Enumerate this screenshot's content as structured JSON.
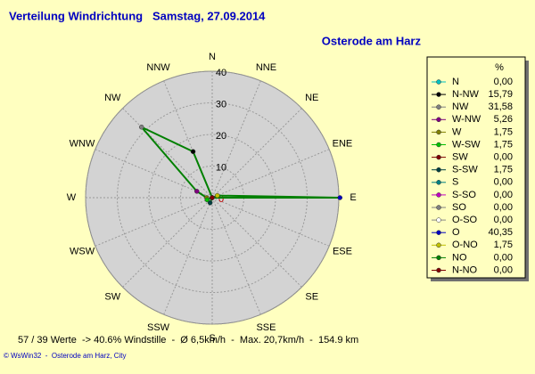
{
  "chart_data": {
    "type": "polar",
    "title": "Verteilung Windrichtung   Samstag, 27.09.2014",
    "subtitle": "Osterode am Harz",
    "categories": [
      "N",
      "NNE",
      "NE",
      "ENE",
      "E",
      "ESE",
      "SE",
      "SSE",
      "S",
      "SSW",
      "SW",
      "WSW",
      "W",
      "WNW",
      "NW",
      "NNW"
    ],
    "legend_title": "%",
    "legend_labels": [
      "N",
      "N-NW",
      "NW",
      "W-NW",
      "W",
      "W-SW",
      "SW",
      "S-SW",
      "S",
      "S-SO",
      "SO",
      "O-SO",
      "O",
      "O-NO",
      "NO",
      "N-NO"
    ],
    "values": [
      0,
      15.79,
      31.58,
      5.26,
      1.75,
      1.75,
      0,
      1.75,
      0,
      0,
      0,
      0,
      40.35,
      1.75,
      0,
      0
    ],
    "value_labels": [
      "0,00",
      "15,79",
      "31,58",
      "5,26",
      "1,75",
      "1,75",
      "0,00",
      "1,75",
      "0,00",
      "0,00",
      "0,00",
      "0,00",
      "40,35",
      "1,75",
      "0,00",
      "0,00"
    ],
    "colors": [
      "#00c0c0",
      "#000000",
      "#808080",
      "#800080",
      "#808000",
      "#00c000",
      "#800000",
      "#004040",
      "#008080",
      "#c000c0",
      "#808080",
      "#ffffff",
      "#0000c0",
      "#c0c000",
      "#008000",
      "#800000"
    ],
    "line_color": "#008000",
    "rlim": [
      0,
      40
    ],
    "rticks": [
      0,
      10,
      20,
      30,
      40
    ],
    "footer": "57 / 39 Werte  -> 40.6% Windstille  -  Ø 6,5km/h  -  Max. 20,7km/h  -  154.9 km",
    "credit": "© WsWin32  -  Osterode am Harz, City"
  }
}
